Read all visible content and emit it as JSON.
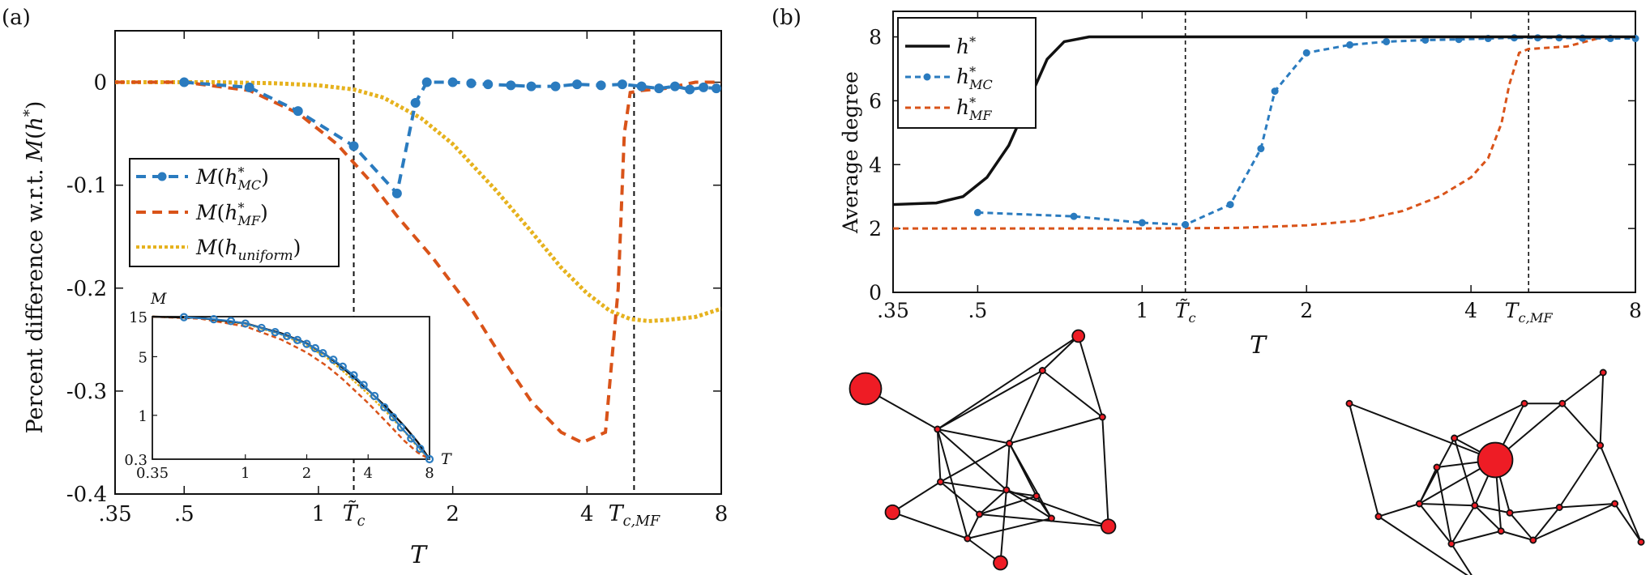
{
  "chart_data": [
    {
      "panel_label": "(a)",
      "type": "line",
      "xscale": "log",
      "xlim": [
        0.35,
        8
      ],
      "ylim": [
        -0.4,
        0.05
      ],
      "xticks": [
        0.35,
        0.5,
        1,
        2,
        4,
        8
      ],
      "xtick_labels": [
        ".35",
        ".5",
        "1",
        "2",
        "4",
        "8"
      ],
      "yticks": [
        0,
        -0.1,
        -0.2,
        -0.3,
        -0.4
      ],
      "ytick_labels": [
        "0",
        "-0.1",
        "-0.2",
        "-0.3",
        "-0.4"
      ],
      "xlabel": "T",
      "ylabel": "Percent difference w.r.t. M(h*)",
      "vlines": [
        {
          "x": 1.2,
          "label": "T̃c"
        },
        {
          "x": 5.1,
          "label": "Tc,MF"
        }
      ],
      "legend_position": "center-left",
      "series": [
        {
          "name": "M(h*_MC)",
          "color": "#2a7bbf",
          "style": "dashed-markers",
          "x": [
            0.5,
            0.7,
            0.9,
            1.2,
            1.5,
            1.65,
            1.75,
            2.0,
            2.2,
            2.4,
            2.7,
            3.0,
            3.4,
            3.8,
            4.3,
            4.8,
            5.3,
            5.8,
            6.3,
            6.8,
            7.3,
            7.8
          ],
          "y": [
            0.0,
            -0.005,
            -0.028,
            -0.062,
            -0.108,
            -0.02,
            0.0,
            0.0,
            -0.001,
            -0.002,
            -0.003,
            -0.004,
            -0.004,
            -0.002,
            -0.003,
            -0.002,
            -0.004,
            -0.006,
            -0.004,
            -0.007,
            -0.005,
            -0.006
          ]
        },
        {
          "name": "M(h*_MF)",
          "color": "#d95319",
          "style": "dashed",
          "x": [
            0.35,
            0.5,
            0.7,
            0.9,
            1.1,
            1.3,
            1.5,
            1.8,
            2.2,
            2.6,
            3.0,
            3.5,
            3.9,
            4.4,
            4.7,
            4.85,
            5.0,
            5.3,
            6.0,
            7.0,
            8.0
          ],
          "y": [
            0.0,
            0.0,
            -0.008,
            -0.03,
            -0.06,
            -0.095,
            -0.13,
            -0.17,
            -0.22,
            -0.27,
            -0.31,
            -0.34,
            -0.35,
            -0.34,
            -0.2,
            -0.05,
            -0.01,
            -0.008,
            -0.006,
            -0.0,
            0.0
          ]
        },
        {
          "name": "M(h_uniform)",
          "color": "#e6b21e",
          "style": "dotted",
          "x": [
            0.35,
            0.6,
            0.8,
            1.0,
            1.2,
            1.4,
            1.7,
            2.0,
            2.5,
            3.0,
            3.5,
            4.0,
            4.5,
            5.0,
            5.5,
            6.0,
            7.0,
            8.0
          ],
          "y": [
            0.0,
            0.0,
            -0.001,
            -0.003,
            -0.007,
            -0.015,
            -0.035,
            -0.06,
            -0.105,
            -0.145,
            -0.18,
            -0.205,
            -0.222,
            -0.23,
            -0.232,
            -0.231,
            -0.228,
            -0.22
          ]
        }
      ],
      "inset": {
        "xscale": "log",
        "yscale": "log",
        "xlim": [
          0.35,
          8
        ],
        "ylim": [
          0.3,
          15
        ],
        "xtick_labels": [
          "0.35",
          "1",
          "2",
          "4",
          "8"
        ],
        "ytick_labels": [
          "15",
          "5",
          "1",
          "0.3"
        ],
        "xlabel": "T",
        "ylabel": "M",
        "series": [
          {
            "name": "h*",
            "color": "#111111",
            "x": [
              0.35,
              0.6,
              1.0,
              1.5,
              2.0,
              2.5,
              3.0,
              4.0,
              5.0,
              6.0,
              7.0,
              8.0
            ],
            "y": [
              15,
              14.5,
              12.5,
              9.5,
              7.2,
              5.2,
              3.7,
              2.0,
              1.2,
              0.75,
              0.48,
              0.3
            ]
          },
          {
            "name": "h*_MC",
            "color": "#2a7bbf",
            "x": [
              0.5,
              0.7,
              0.85,
              1.0,
              1.2,
              1.4,
              1.6,
              1.8,
              2.0,
              2.2,
              2.4,
              2.7,
              3.0,
              3.4,
              3.8,
              4.3,
              4.8,
              5.3,
              5.8,
              6.5,
              7.2,
              8.0
            ],
            "y": [
              14.8,
              14.0,
              13.3,
              12.4,
              11.0,
              9.8,
              8.8,
              7.9,
              7.1,
              6.3,
              5.5,
              4.6,
              3.8,
              3.0,
              2.3,
              1.7,
              1.25,
              0.95,
              0.72,
              0.53,
              0.4,
              0.3
            ]
          },
          {
            "name": "h*_MF",
            "color": "#d95319",
            "x": [
              0.35,
              0.6,
              1.0,
              1.5,
              2.0,
              2.5,
              3.0,
              4.0,
              5.0,
              6.0,
              7.0,
              8.0
            ],
            "y": [
              15,
              14.2,
              11.5,
              8.0,
              5.6,
              3.9,
              2.7,
              1.4,
              0.8,
              0.5,
              0.36,
              0.3
            ]
          },
          {
            "name": "h_uniform",
            "color": "#e6b21e",
            "x": [
              0.35,
              0.6,
              1.0,
              1.5,
              2.0,
              2.5,
              3.0,
              4.0,
              5.0,
              6.0,
              7.0,
              8.0
            ],
            "y": [
              15,
              14.4,
              12.3,
              9.2,
              6.8,
              4.9,
              3.4,
              1.8,
              1.05,
              0.65,
              0.42,
              0.3
            ]
          }
        ]
      }
    },
    {
      "panel_label": "(b)",
      "type": "line",
      "xscale": "log",
      "xlim": [
        0.35,
        8
      ],
      "ylim": [
        0,
        8.8
      ],
      "xticks": [
        0.35,
        0.5,
        1,
        2,
        4,
        8
      ],
      "xtick_labels": [
        ".35",
        ".5",
        "1",
        "2",
        "4",
        "8"
      ],
      "yticks": [
        0,
        2,
        4,
        6,
        8
      ],
      "ytick_labels": [
        "0",
        "2",
        "4",
        "6",
        "8"
      ],
      "xlabel": "T",
      "ylabel": "Average degree",
      "vlines": [
        {
          "x": 1.2,
          "label": "T̃c"
        },
        {
          "x": 5.1,
          "label": "Tc,MF"
        }
      ],
      "legend_position": "top-left",
      "series": [
        {
          "name": "h*",
          "color": "#111111",
          "style": "solid",
          "x": [
            0.35,
            0.42,
            0.47,
            0.52,
            0.57,
            0.62,
            0.67,
            0.72,
            0.8,
            1.0,
            2.0,
            8.0
          ],
          "y": [
            2.75,
            2.8,
            3.0,
            3.6,
            4.6,
            6.0,
            7.3,
            7.85,
            8.0,
            8.0,
            8.0,
            8.0
          ]
        },
        {
          "name": "h*_MC",
          "color": "#2a7bbf",
          "style": "dashed-markers",
          "x": [
            0.5,
            0.75,
            1.0,
            1.2,
            1.45,
            1.65,
            1.75,
            2.0,
            2.4,
            2.8,
            3.3,
            3.8,
            4.3,
            4.8,
            5.3,
            5.8,
            6.4,
            7.2,
            8.0
          ],
          "y": [
            2.5,
            2.38,
            2.18,
            2.12,
            2.75,
            4.5,
            6.3,
            7.5,
            7.75,
            7.85,
            7.9,
            7.92,
            7.95,
            7.97,
            7.97,
            7.97,
            7.96,
            7.95,
            7.95
          ]
        },
        {
          "name": "h*_MF",
          "color": "#d95319",
          "style": "dashed",
          "x": [
            0.35,
            1.0,
            1.5,
            2.0,
            2.5,
            3.0,
            3.5,
            4.0,
            4.3,
            4.55,
            4.7,
            4.9,
            5.1,
            6.0,
            7.0,
            8.0
          ],
          "y": [
            2.0,
            2.0,
            2.02,
            2.1,
            2.25,
            2.55,
            3.0,
            3.6,
            4.2,
            5.3,
            6.5,
            7.5,
            7.62,
            7.7,
            8.0,
            8.0
          ]
        }
      ]
    }
  ],
  "networks": {
    "left": {
      "nodes": [
        [
          0.0,
          0.26,
          3.0
        ],
        [
          0.71,
          0.0,
          1.15
        ],
        [
          0.59,
          0.17,
          0.55
        ],
        [
          0.79,
          0.4,
          0.55
        ],
        [
          0.24,
          0.46,
          0.55
        ],
        [
          0.48,
          0.53,
          0.55
        ],
        [
          0.25,
          0.72,
          0.55
        ],
        [
          0.09,
          0.87,
          1.35
        ],
        [
          0.47,
          0.76,
          0.55
        ],
        [
          0.57,
          0.79,
          0.55
        ],
        [
          0.38,
          0.88,
          0.55
        ],
        [
          0.62,
          0.9,
          0.55
        ],
        [
          0.81,
          0.94,
          1.35
        ],
        [
          0.34,
          1.0,
          0.55
        ],
        [
          0.45,
          1.12,
          1.3
        ]
      ],
      "edges": [
        [
          0,
          4
        ],
        [
          1,
          2
        ],
        [
          1,
          3
        ],
        [
          1,
          4
        ],
        [
          2,
          3
        ],
        [
          2,
          4
        ],
        [
          2,
          5
        ],
        [
          3,
          12
        ],
        [
          3,
          5
        ],
        [
          4,
          5
        ],
        [
          4,
          6
        ],
        [
          4,
          8
        ],
        [
          4,
          13
        ],
        [
          5,
          6
        ],
        [
          5,
          8
        ],
        [
          5,
          9
        ],
        [
          5,
          11
        ],
        [
          6,
          7
        ],
        [
          6,
          9
        ],
        [
          6,
          10
        ],
        [
          7,
          13
        ],
        [
          8,
          10
        ],
        [
          8,
          11
        ],
        [
          8,
          12
        ],
        [
          9,
          10
        ],
        [
          9,
          11
        ],
        [
          10,
          13
        ],
        [
          10,
          12
        ],
        [
          11,
          13
        ],
        [
          13,
          14
        ],
        [
          14,
          8
        ]
      ]
    },
    "right": {
      "nodes": [
        [
          0.0,
          0.17,
          0.55
        ],
        [
          0.87,
          0.0,
          0.55
        ],
        [
          0.6,
          0.17,
          0.55
        ],
        [
          0.73,
          0.17,
          0.55
        ],
        [
          0.86,
          0.4,
          0.55
        ],
        [
          0.36,
          0.36,
          0.55
        ],
        [
          0.5,
          0.48,
          3.3
        ],
        [
          0.3,
          0.52,
          0.55
        ],
        [
          0.1,
          0.79,
          0.55
        ],
        [
          0.24,
          0.72,
          0.55
        ],
        [
          0.43,
          0.73,
          0.55
        ],
        [
          0.55,
          0.77,
          0.55
        ],
        [
          0.63,
          0.92,
          0.55
        ],
        [
          0.52,
          0.87,
          0.55
        ],
        [
          0.35,
          0.94,
          0.55
        ],
        [
          1.0,
          0.93,
          0.55
        ],
        [
          0.91,
          0.72,
          0.55
        ],
        [
          0.72,
          0.74,
          0.55
        ],
        [
          0.43,
          1.14,
          0.55
        ]
      ],
      "edges": [
        [
          0,
          8
        ],
        [
          0,
          6
        ],
        [
          1,
          3
        ],
        [
          1,
          4
        ],
        [
          2,
          3
        ],
        [
          2,
          6
        ],
        [
          2,
          5
        ],
        [
          3,
          4
        ],
        [
          3,
          6
        ],
        [
          4,
          15
        ],
        [
          4,
          17
        ],
        [
          5,
          6
        ],
        [
          5,
          9
        ],
        [
          5,
          10
        ],
        [
          6,
          7
        ],
        [
          6,
          9
        ],
        [
          6,
          10
        ],
        [
          6,
          11
        ],
        [
          6,
          13
        ],
        [
          7,
          9
        ],
        [
          7,
          14
        ],
        [
          8,
          9
        ],
        [
          8,
          18
        ],
        [
          9,
          10
        ],
        [
          9,
          14
        ],
        [
          10,
          11
        ],
        [
          10,
          13
        ],
        [
          10,
          14
        ],
        [
          11,
          17
        ],
        [
          11,
          12
        ],
        [
          12,
          13
        ],
        [
          13,
          14
        ],
        [
          14,
          18
        ],
        [
          16,
          17
        ],
        [
          16,
          12
        ],
        [
          15,
          16
        ],
        [
          17,
          12
        ]
      ]
    }
  }
}
